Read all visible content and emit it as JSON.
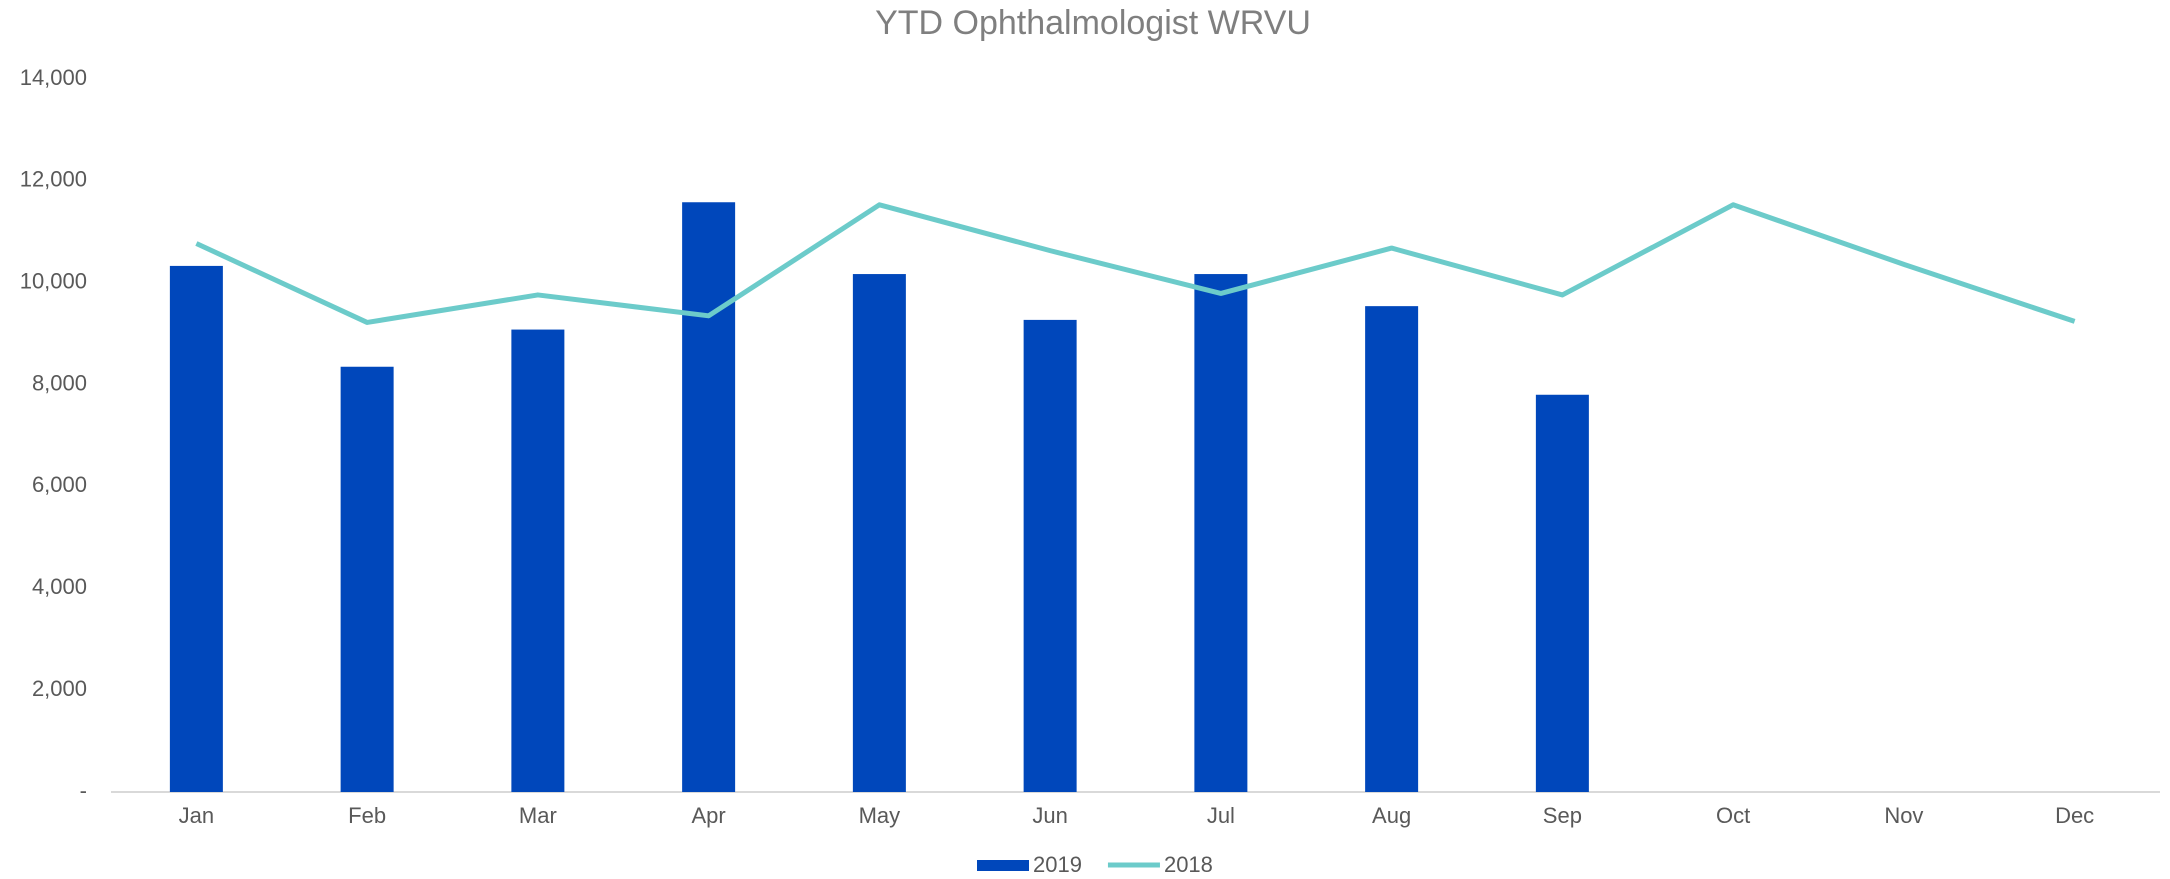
{
  "chart_data": {
    "type": "bar_line",
    "title": "YTD Ophthalmologist WRVU",
    "categories": [
      "Jan",
      "Feb",
      "Mar",
      "Apr",
      "May",
      "Jun",
      "Jul",
      "Aug",
      "Sep",
      "Oct",
      "Nov",
      "Dec"
    ],
    "series": [
      {
        "name": "2019",
        "type": "bar",
        "color": "#0047bb",
        "values": [
          10330,
          8350,
          9080,
          11580,
          10170,
          9270,
          10170,
          9540,
          7800,
          null,
          null,
          null
        ]
      },
      {
        "name": "2018",
        "type": "line",
        "color": "#6ccbca",
        "values": [
          10770,
          9220,
          9760,
          9350,
          11530,
          10630,
          9790,
          10680,
          9760,
          11530,
          10360,
          9240
        ]
      }
    ],
    "ylim": [
      0,
      14000
    ],
    "yticks": [
      {
        "value": 0,
        "label": "-"
      },
      {
        "value": 2000,
        "label": "2,000"
      },
      {
        "value": 4000,
        "label": "4,000"
      },
      {
        "value": 6000,
        "label": "6,000"
      },
      {
        "value": 8000,
        "label": "8,000"
      },
      {
        "value": 10000,
        "label": "10,000"
      },
      {
        "value": 12000,
        "label": "12,000"
      },
      {
        "value": 14000,
        "label": "14,000"
      }
    ],
    "grid": false,
    "legend": "bottom"
  }
}
